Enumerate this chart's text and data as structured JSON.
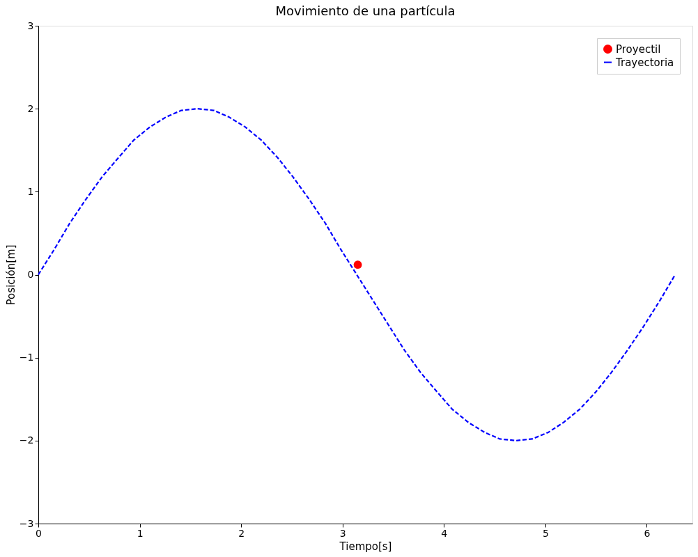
{
  "chart_data": {
    "type": "line",
    "title": "Movimiento de una partícula",
    "xlabel": "Tiempo[s]",
    "ylabel": "Posición[m]",
    "xlim": [
      0,
      6.45
    ],
    "xticks": [
      0,
      1,
      2,
      3,
      4,
      5,
      6
    ],
    "ylim": [
      -3,
      3
    ],
    "yticks": [
      -3,
      -2,
      -1,
      0,
      1,
      2,
      3
    ],
    "grid": false,
    "legend": "top right",
    "series": [
      {
        "name": "Proyectil",
        "type": "scatter",
        "color": "#ff0000",
        "marker": "circle",
        "x": [
          3.15
        ],
        "values": [
          0.12
        ]
      },
      {
        "name": "Trayectoria",
        "type": "line",
        "color": "#0000ff",
        "line_style": "dashed",
        "marker": "none",
        "x": [
          0,
          0.16,
          0.31,
          0.47,
          0.63,
          0.79,
          0.94,
          1.1,
          1.26,
          1.41,
          1.57,
          1.73,
          1.88,
          2.04,
          2.2,
          2.36,
          2.51,
          2.67,
          2.83,
          2.98,
          3.14,
          3.3,
          3.46,
          3.61,
          3.77,
          3.93,
          4.08,
          4.24,
          4.4,
          4.55,
          4.71,
          4.87,
          5.03,
          5.18,
          5.34,
          5.5,
          5.65,
          5.81,
          5.97,
          6.13,
          6.28
        ],
        "values": [
          0,
          0.31,
          0.62,
          0.91,
          1.18,
          1.41,
          1.62,
          1.78,
          1.9,
          1.98,
          2,
          1.98,
          1.9,
          1.78,
          1.62,
          1.41,
          1.18,
          0.91,
          0.62,
          0.31,
          0,
          -0.31,
          -0.62,
          -0.91,
          -1.18,
          -1.41,
          -1.62,
          -1.78,
          -1.9,
          -1.98,
          -2,
          -1.98,
          -1.9,
          -1.78,
          -1.62,
          -1.41,
          -1.18,
          -0.91,
          -0.62,
          -0.31,
          0
        ]
      }
    ]
  }
}
